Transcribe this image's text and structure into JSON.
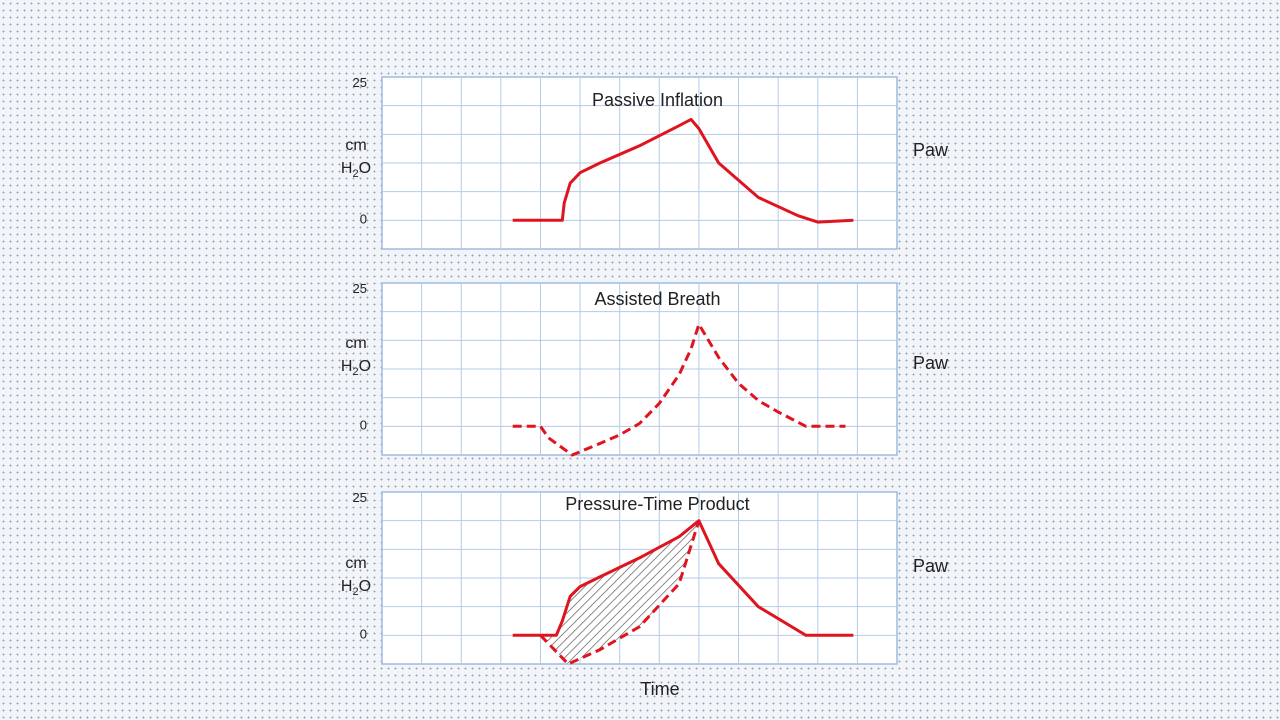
{
  "chart_data": [
    {
      "type": "line",
      "title": "Passive Inflation",
      "ylabel_line1": "cm",
      "ylabel_line2": "H2O",
      "ylabel_base": "H",
      "ylabel_sub": "2",
      "ylabel_tail": "O",
      "right_label": "Paw",
      "ytick_top": "25",
      "ytick_zero": "0",
      "ylim": [
        -5,
        25
      ],
      "x_range": [
        -2.5,
        10.5
      ],
      "grid": true,
      "line_color": "#e0141e",
      "series": [
        {
          "style": "solid",
          "x": [
            0.8,
            2.05,
            2.1,
            2.25,
            2.5,
            3.0,
            4.0,
            5.0,
            5.3,
            5.5,
            6.0,
            7.0,
            8.0,
            8.5,
            9.4
          ],
          "y": [
            0,
            0,
            3,
            6.5,
            8.3,
            10,
            13,
            16.5,
            17.6,
            16,
            10,
            4,
            0.8,
            -0.3,
            0
          ]
        }
      ]
    },
    {
      "type": "line",
      "title": "Assisted Breath",
      "ylabel_line1": "cm",
      "ylabel_line2": "H2O",
      "ylabel_base": "H",
      "ylabel_sub": "2",
      "ylabel_tail": "O",
      "right_label": "Paw",
      "ytick_top": "25",
      "ytick_zero": "0",
      "ylim": [
        -5,
        25
      ],
      "x_range": [
        -2.5,
        10.5
      ],
      "grid": true,
      "line_color": "#e0141e",
      "series": [
        {
          "style": "dashed",
          "x": [
            0.8,
            1.5,
            1.7,
            2.3,
            3.0,
            3.5,
            4.0,
            4.5,
            5.0,
            5.3,
            5.5,
            6.0,
            6.5,
            7.0,
            7.5,
            8.2,
            9.2
          ],
          "y": [
            0,
            0,
            -2,
            -5,
            -3,
            -1.5,
            0.5,
            4,
            9,
            13.5,
            17.8,
            12,
            7.5,
            4.5,
            2.5,
            0,
            0
          ]
        }
      ]
    },
    {
      "type": "line",
      "title": "Pressure-Time  Product",
      "ylabel_line1": "cm",
      "ylabel_line2": "H2O",
      "ylabel_base": "H",
      "ylabel_sub": "2",
      "ylabel_tail": "O",
      "right_label": "Paw",
      "ytick_top": "25",
      "ytick_zero": "0",
      "ylim": [
        -5,
        25
      ],
      "x_range": [
        -2.5,
        10.5
      ],
      "grid": true,
      "line_color": "#e0141e",
      "shaded_area": "hatched",
      "series": [
        {
          "style": "solid",
          "x": [
            0.8,
            1.9,
            2.05,
            2.25,
            2.5,
            3.0,
            4.0,
            5.0,
            5.5,
            6.0,
            7.0,
            8.2,
            9.4
          ],
          "y": [
            0,
            0,
            2.5,
            6.8,
            8.5,
            10.2,
            13.5,
            17.2,
            20,
            12.5,
            5,
            0,
            0
          ]
        },
        {
          "style": "dashed",
          "x": [
            1.5,
            2.2,
            3.0,
            4.0,
            5.0,
            5.5
          ],
          "y": [
            0,
            -5,
            -2.5,
            1.5,
            9,
            20
          ]
        }
      ]
    }
  ],
  "xlabel": "Time"
}
